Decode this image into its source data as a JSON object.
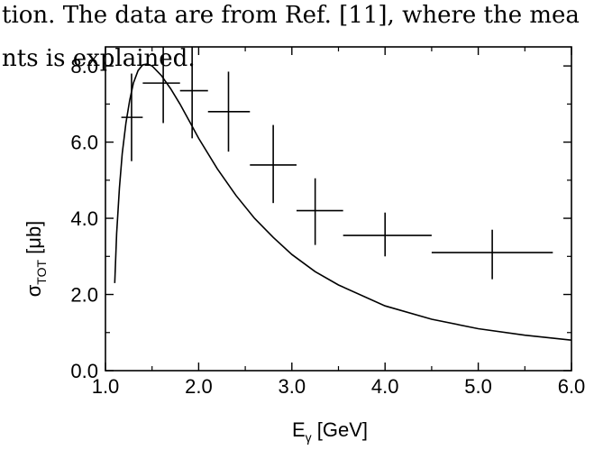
{
  "caption": {
    "line1": "tion. The data are from Ref. [11], where the mea",
    "line2": "nts is explained."
  },
  "chart_data": {
    "type": "scatter",
    "xlabel": {
      "main": "E",
      "sub": "γ",
      "unit": " [GeV]"
    },
    "ylabel": {
      "main": "σ",
      "sub": "TOT",
      "unit": " [μb]"
    },
    "xlim": [
      1.0,
      6.0
    ],
    "ylim": [
      0.0,
      8.5
    ],
    "x_ticks": [
      1.0,
      2.0,
      3.0,
      4.0,
      5.0,
      6.0
    ],
    "x_tick_labels": [
      "1.0",
      "2.0",
      "3.0",
      "4.0",
      "5.0",
      "6.0"
    ],
    "y_ticks": [
      0.0,
      2.0,
      4.0,
      6.0,
      8.0
    ],
    "y_tick_labels": [
      "0.0",
      "2.0",
      "4.0",
      "6.0",
      "8.0"
    ],
    "series": [
      {
        "type": "errorbar",
        "points": [
          {
            "x": 1.28,
            "y": 6.65,
            "xerr": [
              1.17,
              1.4
            ],
            "yerr": [
              5.5,
              7.8
            ]
          },
          {
            "x": 1.62,
            "y": 7.55,
            "xerr": [
              1.4,
              1.8
            ],
            "yerr": [
              6.5,
              8.5
            ]
          },
          {
            "x": 1.93,
            "y": 7.35,
            "xerr": [
              1.8,
              2.1
            ],
            "yerr": [
              6.1,
              8.5
            ]
          },
          {
            "x": 2.32,
            "y": 6.8,
            "xerr": [
              2.1,
              2.55
            ],
            "yerr": [
              5.75,
              7.85
            ]
          },
          {
            "x": 2.8,
            "y": 5.4,
            "xerr": [
              2.55,
              3.05
            ],
            "yerr": [
              4.4,
              6.45
            ]
          },
          {
            "x": 3.25,
            "y": 4.2,
            "xerr": [
              3.05,
              3.55
            ],
            "yerr": [
              3.3,
              5.05
            ]
          },
          {
            "x": 4.0,
            "y": 3.55,
            "xerr": [
              3.55,
              4.5
            ],
            "yerr": [
              3.0,
              4.15
            ]
          },
          {
            "x": 5.15,
            "y": 3.1,
            "xerr": [
              4.5,
              5.8
            ],
            "yerr": [
              2.4,
              3.7
            ]
          }
        ]
      },
      {
        "type": "line",
        "x": [
          1.1,
          1.12,
          1.15,
          1.18,
          1.22,
          1.26,
          1.3,
          1.35,
          1.4,
          1.45,
          1.5,
          1.6,
          1.7,
          1.8,
          1.9,
          2.0,
          2.2,
          2.4,
          2.6,
          2.8,
          3.0,
          3.25,
          3.5,
          4.0,
          4.5,
          5.0,
          5.5,
          6.0
        ],
        "y": [
          2.3,
          3.6,
          4.8,
          5.7,
          6.5,
          7.1,
          7.55,
          7.88,
          8.03,
          8.05,
          8.0,
          7.75,
          7.4,
          7.0,
          6.55,
          6.1,
          5.3,
          4.6,
          4.0,
          3.5,
          3.05,
          2.6,
          2.25,
          1.7,
          1.35,
          1.1,
          0.93,
          0.8
        ]
      }
    ]
  }
}
